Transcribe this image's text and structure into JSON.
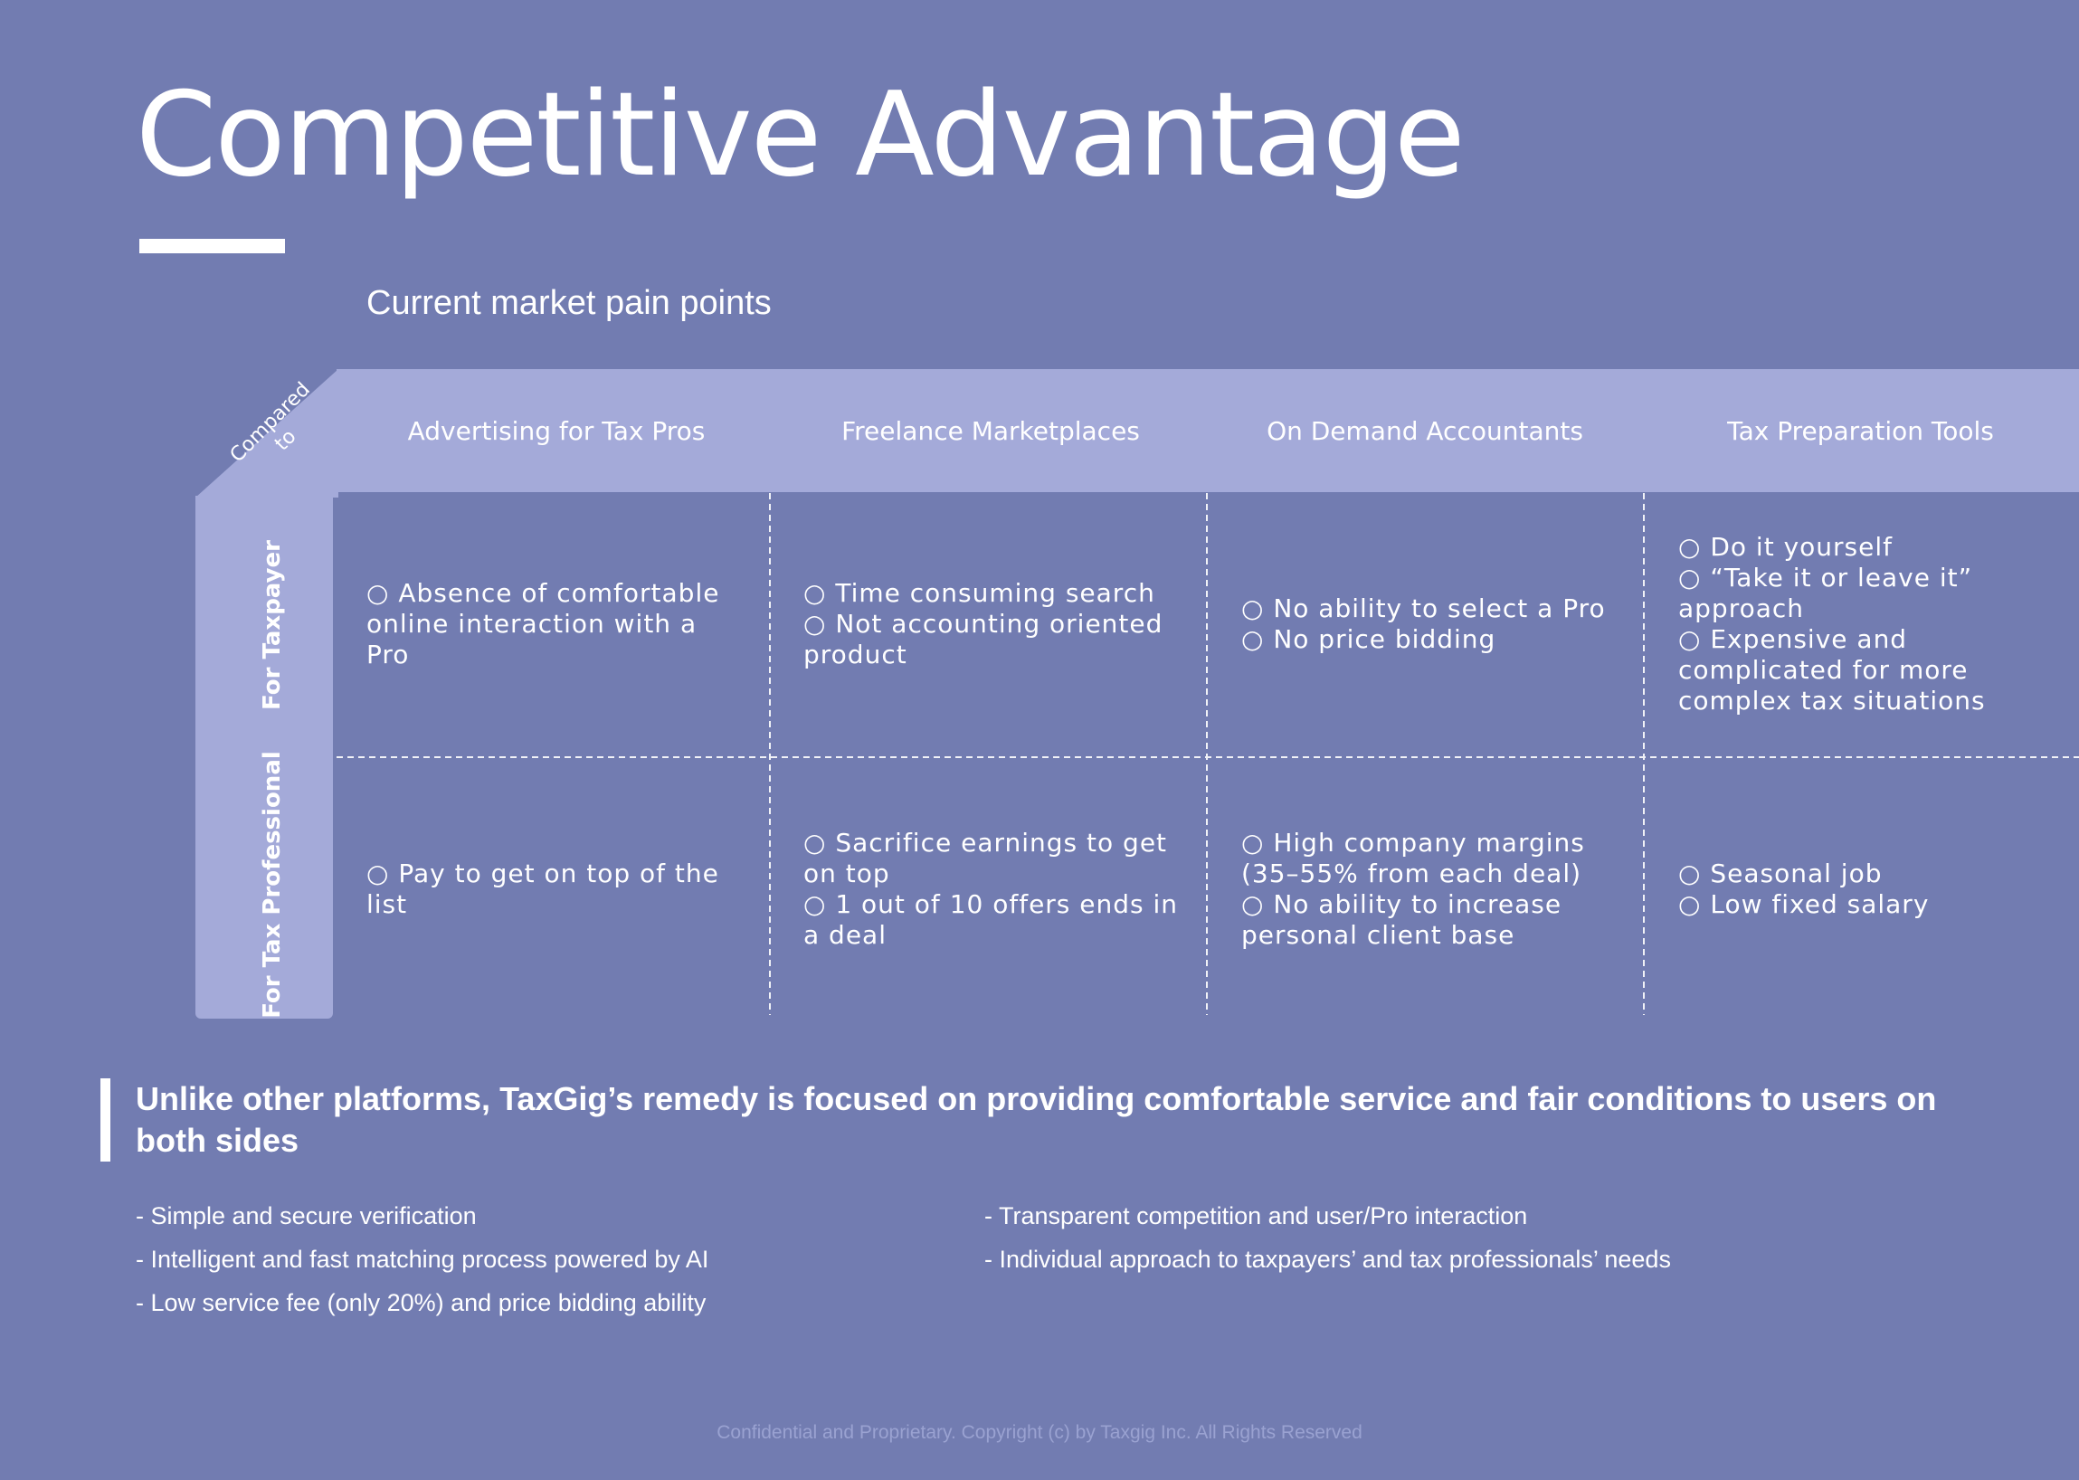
{
  "page": {
    "title": "Competitive Advantage",
    "subtitle": "Current market pain points"
  },
  "table": {
    "corner_label": "Compared to",
    "columns": [
      "Advertising for Tax Pros",
      "Freelance Marketplaces",
      "On Demand Accountants",
      "Tax Preparation Tools"
    ],
    "rows": [
      {
        "label": "For Taxpayer",
        "cells": [
          "○ Absence of comfortable online interaction with a Pro",
          "○ Time consuming search ○ Not accounting oriented product",
          "○ No ability to select a Pro\n○ No price bidding",
          "○ Do it yourself\n○ “Take it or leave it” approach\n○ Expensive and complicated for more complex tax situations"
        ]
      },
      {
        "label": "For Tax Professional",
        "cells": [
          "○ Pay to get on top of the list",
          "○ Sacrifice earnings to get on top\n○ 1 out of 10 offers ends in a deal",
          "○ High company margins (35–55% from each deal)\n○ No ability to increase personal client base",
          "○ Seasonal job\n○ Low fixed salary"
        ]
      }
    ]
  },
  "callout": {
    "text": "Unlike other platforms, TaxGig’s remedy is focused on providing comfortable service and fair conditions to users on both sides"
  },
  "benefits": {
    "left": [
      "- Simple and secure verification",
      "- Intelligent and fast matching process powered by AI",
      "- Low service fee (only 20%) and price bidding ability"
    ],
    "right": [
      "- Transparent competition and user/Pro interaction",
      "- Individual approach to taxpayers’ and tax professionals’ needs"
    ]
  },
  "footer": {
    "text": "Confidential and Proprietary. Copyright (c) by Taxgig Inc. All Rights Reserved"
  },
  "colors": {
    "background": "#727cb1",
    "band": "#a4aad9",
    "text": "#ffffff",
    "footer_text": "#9aa2d1"
  }
}
